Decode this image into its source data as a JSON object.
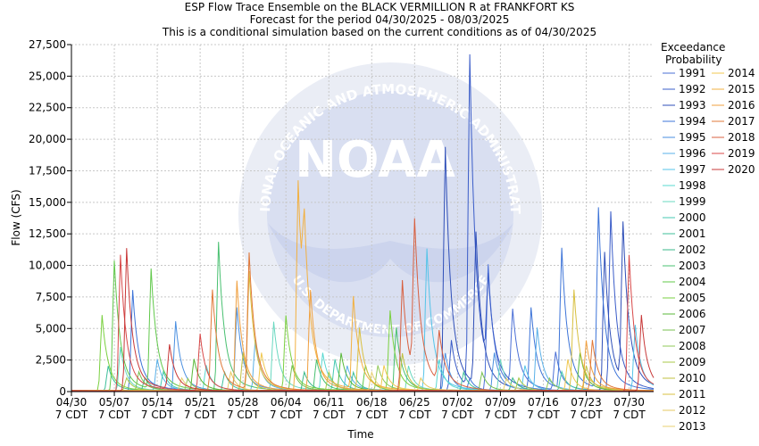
{
  "chart_data": {
    "type": "line",
    "title": "ESP Flow Trace Ensemble on the BLACK VERMILLION R at FRANKFORT KS",
    "subtitle1": "Forecast for the period 04/30/2025 - 08/03/2025",
    "subtitle2": "This is a conditional simulation based on the current conditions as of 04/30/2025",
    "xlabel": "Time",
    "ylabel": "Flow (CFS)",
    "ylim": [
      0,
      27500
    ],
    "xlim_days": [
      0,
      95
    ],
    "grid": true,
    "legend_title_1": "Exceedance",
    "legend_title_2": "Probability",
    "legend_placement": "right",
    "y_ticks": [
      "0",
      "2,500",
      "5,000",
      "7,500",
      "10,000",
      "12,500",
      "15,000",
      "17,500",
      "20,000",
      "22,500",
      "25,000",
      "27,500"
    ],
    "x_ticks": [
      {
        "date": "04/30",
        "tz": "7 CDT"
      },
      {
        "date": "05/07",
        "tz": "7 CDT"
      },
      {
        "date": "05/14",
        "tz": "7 CDT"
      },
      {
        "date": "05/21",
        "tz": "7 CDT"
      },
      {
        "date": "05/28",
        "tz": "7 CDT"
      },
      {
        "date": "06/04",
        "tz": "7 CDT"
      },
      {
        "date": "06/11",
        "tz": "7 CDT"
      },
      {
        "date": "06/18",
        "tz": "7 CDT"
      },
      {
        "date": "06/25",
        "tz": "7 CDT"
      },
      {
        "date": "07/02",
        "tz": "7 CDT"
      },
      {
        "date": "07/09",
        "tz": "7 CDT"
      },
      {
        "date": "07/16",
        "tz": "7 CDT"
      },
      {
        "date": "07/23",
        "tz": "7 CDT"
      },
      {
        "date": "07/30",
        "tz": "7 CDT"
      }
    ],
    "watermark": {
      "logo_text": "NOAA",
      "ring_text": "NATIONAL OCEANIC AND ATMOSPHERIC ADMINISTRATION",
      "lower_text": "U.S. DEPARTMENT OF COMMERCE"
    },
    "series": [
      {
        "name": "1991",
        "color": "#4a6fd6",
        "peaks": [
          [
            68,
            10000
          ],
          [
            72,
            6000
          ],
          [
            79,
            3000
          ]
        ]
      },
      {
        "name": "1992",
        "color": "#3a5cc8",
        "peaks": [
          [
            62,
            4000
          ],
          [
            65,
            26300
          ],
          [
            68,
            7000
          ],
          [
            88,
            14200
          ]
        ]
      },
      {
        "name": "1993",
        "color": "#2f4fb8",
        "peaks": [
          [
            61,
            19300
          ],
          [
            66,
            12000
          ],
          [
            87,
            11000
          ],
          [
            90,
            12500
          ]
        ]
      },
      {
        "name": "1994",
        "color": "#3d74d8",
        "peaks": [
          [
            10,
            8000
          ],
          [
            65,
            1000
          ],
          [
            75,
            6600
          ],
          [
            80,
            11100
          ],
          [
            86,
            14300
          ]
        ]
      },
      {
        "name": "1995",
        "color": "#4a8fe0",
        "peaks": [
          [
            17,
            5500
          ],
          [
            27,
            6600
          ],
          [
            61,
            3000
          ],
          [
            69,
            3000
          ]
        ]
      },
      {
        "name": "1996",
        "color": "#5ab0e8",
        "peaks": [
          [
            14,
            2500
          ],
          [
            30,
            4000
          ],
          [
            45,
            2000
          ],
          [
            76,
            5000
          ]
        ]
      },
      {
        "name": "1997",
        "color": "#55c4e8",
        "peaks": [
          [
            58,
            11300
          ],
          [
            74,
            2000
          ],
          [
            92,
            5200
          ]
        ]
      },
      {
        "name": "1998",
        "color": "#58d8d0",
        "peaks": [
          [
            22,
            2000
          ],
          [
            41,
            3000
          ],
          [
            60,
            2500
          ]
        ]
      },
      {
        "name": "1999",
        "color": "#6ad8c0",
        "peaks": [
          [
            8,
            3500
          ],
          [
            33,
            5500
          ],
          [
            55,
            2000
          ],
          [
            70,
            2500
          ]
        ]
      },
      {
        "name": "2000",
        "color": "#44c8b0",
        "peaks": [
          [
            15,
            1500
          ],
          [
            43,
            2500
          ],
          [
            80,
            1500
          ]
        ]
      },
      {
        "name": "2001",
        "color": "#3dbf9a",
        "peaks": [
          [
            6,
            2000
          ],
          [
            25,
            1500
          ],
          [
            46,
            1500
          ],
          [
            64,
            1500
          ]
        ]
      },
      {
        "name": "2002",
        "color": "#38b888",
        "peaks": [
          [
            12,
            1000
          ],
          [
            38,
            1500
          ],
          [
            72,
            1000
          ]
        ]
      },
      {
        "name": "2003",
        "color": "#48c070",
        "peaks": [
          [
            24,
            11800
          ],
          [
            40,
            2500
          ],
          [
            53,
            5000
          ]
        ]
      },
      {
        "name": "2004",
        "color": "#60c84a",
        "peaks": [
          [
            7,
            10300
          ],
          [
            13,
            9500
          ],
          [
            48,
            2000
          ]
        ]
      },
      {
        "name": "2005",
        "color": "#7ad040",
        "peaks": [
          [
            5,
            6000
          ],
          [
            35,
            6000
          ],
          [
            52,
            6400
          ]
        ]
      },
      {
        "name": "2006",
        "color": "#58b838",
        "peaks": [
          [
            20,
            2500
          ],
          [
            44,
            3000
          ],
          [
            83,
            3000
          ]
        ]
      },
      {
        "name": "2007",
        "color": "#78c050",
        "peaks": [
          [
            11,
            1500
          ],
          [
            36,
            2000
          ],
          [
            67,
            1500
          ]
        ]
      },
      {
        "name": "2008",
        "color": "#90c858",
        "peaks": [
          [
            19,
            1000
          ],
          [
            50,
            2000
          ],
          [
            78,
            1000
          ]
        ]
      },
      {
        "name": "2009",
        "color": "#a8c848",
        "peaks": [
          [
            9,
            1000
          ],
          [
            42,
            1500
          ],
          [
            73,
            1000
          ]
        ]
      },
      {
        "name": "2010",
        "color": "#c0c040",
        "peaks": [
          [
            28,
            3000
          ],
          [
            54,
            3000
          ],
          [
            84,
            2000
          ]
        ]
      },
      {
        "name": "2011",
        "color": "#d8c040",
        "peaks": [
          [
            29,
            9500
          ],
          [
            47,
            5000
          ],
          [
            82,
            8000
          ]
        ]
      },
      {
        "name": "2012",
        "color": "#e6c860",
        "peaks": [
          [
            26,
            1500
          ],
          [
            57,
            1000
          ]
        ]
      },
      {
        "name": "2013",
        "color": "#e8d070",
        "peaks": [
          [
            18,
            1000
          ],
          [
            49,
            1500
          ],
          [
            71,
            1000
          ]
        ]
      },
      {
        "name": "2014",
        "color": "#f0c850",
        "peaks": [
          [
            31,
            3000
          ],
          [
            51,
            2000
          ],
          [
            81,
            2500
          ]
        ]
      },
      {
        "name": "2015",
        "color": "#f2b040",
        "peaks": [
          [
            37,
            16700
          ],
          [
            38,
            8000
          ],
          [
            46,
            7300
          ]
        ]
      },
      {
        "name": "2016",
        "color": "#f0a040",
        "peaks": [
          [
            27,
            8700
          ],
          [
            39,
            8000
          ],
          [
            84,
            4000
          ]
        ]
      },
      {
        "name": "2017",
        "color": "#e07838",
        "peaks": [
          [
            23,
            8000
          ],
          [
            29,
            10800
          ],
          [
            85,
            4000
          ]
        ]
      },
      {
        "name": "2018",
        "color": "#d86040",
        "peaks": [
          [
            54,
            8800
          ],
          [
            56,
            12200
          ],
          [
            60,
            4000
          ]
        ]
      },
      {
        "name": "2019",
        "color": "#d84848",
        "peaks": [
          [
            8,
            10800
          ],
          [
            21,
            4500
          ],
          [
            91,
            10800
          ]
        ]
      },
      {
        "name": "2020",
        "color": "#c83838",
        "peaks": [
          [
            9,
            11300
          ],
          [
            16,
            3500
          ],
          [
            93,
            6000
          ]
        ]
      }
    ]
  }
}
